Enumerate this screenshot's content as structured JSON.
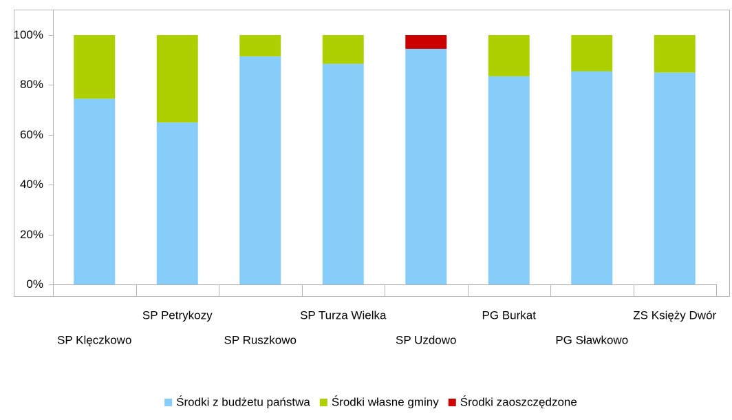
{
  "chart_data": {
    "type": "stacked-bar",
    "categories": [
      "SP Klęczkowo",
      "SP Petrykozy",
      "SP Ruszkowo",
      "SP Turza Wielka",
      "SP Uzdowo",
      "PG Burkat",
      "PG Sławkowo",
      "ZS Księży Dwór"
    ],
    "series": [
      {
        "name": "Środki z budżetu państwa",
        "color": "#87cdf9",
        "values": [
          74.5,
          65,
          91.5,
          88.5,
          94.5,
          83.5,
          85.5,
          85
        ]
      },
      {
        "name": "Środki własne gminy",
        "color": "#aecf00",
        "values": [
          25.5,
          35,
          8.5,
          11.5,
          0,
          16.5,
          14.5,
          15
        ]
      },
      {
        "name": "Środki zaoszczędzone",
        "color": "#cc0000",
        "values": [
          0,
          0,
          0,
          0,
          5.5,
          0,
          0,
          0
        ]
      }
    ],
    "ylim": [
      0,
      100
    ],
    "yticks": [
      {
        "value": 0,
        "label": "0%"
      },
      {
        "value": 20,
        "label": "20%"
      },
      {
        "value": 40,
        "label": "40%"
      },
      {
        "value": 60,
        "label": "60%"
      },
      {
        "value": 80,
        "label": "80%"
      },
      {
        "value": 100,
        "label": "100%"
      }
    ],
    "grid": false,
    "legend": "bottom"
  }
}
